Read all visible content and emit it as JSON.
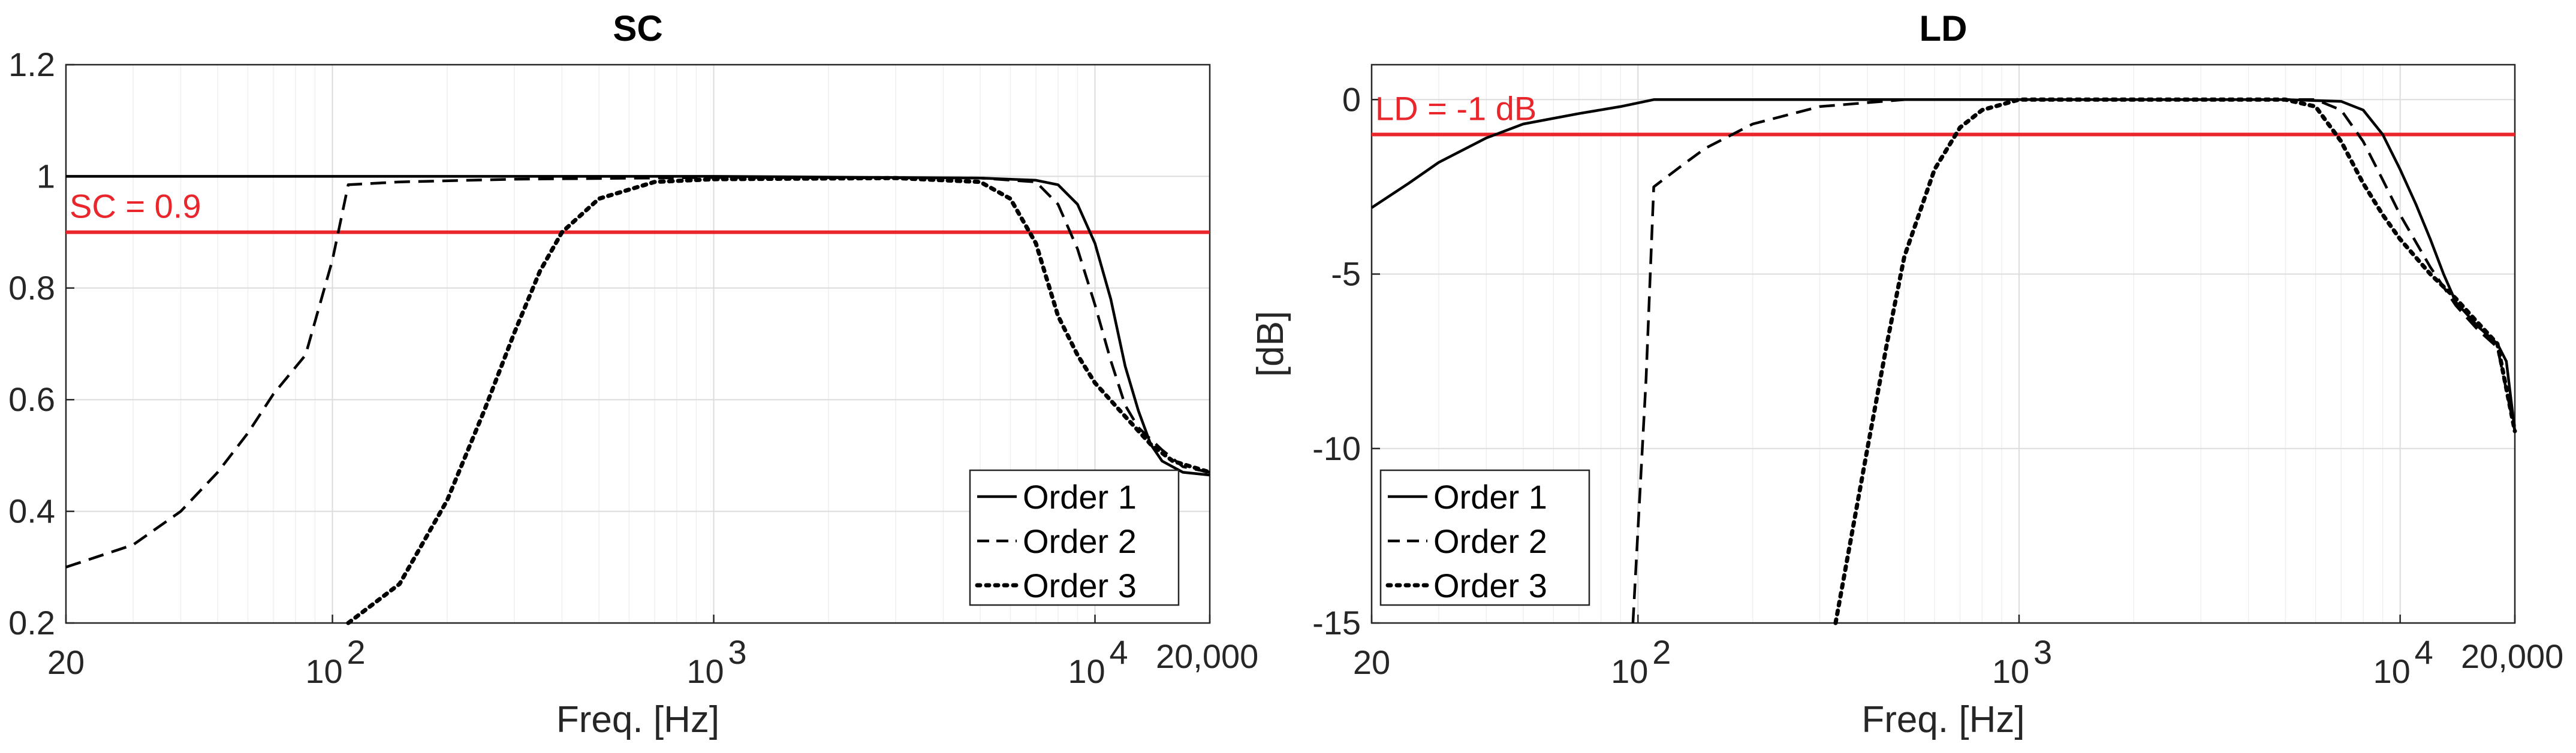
{
  "chart_data": [
    {
      "type": "line",
      "title": "SC",
      "xlabel": "Freq. [Hz]",
      "ylabel": "",
      "xscale": "log",
      "xlim": [
        20,
        20000
      ],
      "ylim": [
        0.2,
        1.2
      ],
      "xticks": [
        20,
        100,
        1000,
        10000,
        20000
      ],
      "xtick_labels": [
        "20",
        "10^2",
        "10^3",
        "10^4",
        "20,000"
      ],
      "yticks": [
        0.2,
        0.4,
        0.6,
        0.8,
        1,
        1.2
      ],
      "ytick_labels": [
        "0.2",
        "0.4",
        "0.6",
        "0.8",
        "1",
        "1.2"
      ],
      "grid": true,
      "legend_position": "bottom-right",
      "reference_line": {
        "y": 0.9,
        "label": "SC = 0.9",
        "color": "#e8262b"
      },
      "series": [
        {
          "name": "Order 1",
          "style": "solid",
          "points": [
            [
              20,
              1.0
            ],
            [
              100,
              1.0
            ],
            [
              1000,
              1.0
            ],
            [
              5000,
              0.997
            ],
            [
              7000,
              0.993
            ],
            [
              8000,
              0.985
            ],
            [
              9000,
              0.95
            ],
            [
              10000,
              0.88
            ],
            [
              11000,
              0.78
            ],
            [
              12000,
              0.66
            ],
            [
              13000,
              0.58
            ],
            [
              14000,
              0.52
            ],
            [
              15000,
              0.49
            ],
            [
              17000,
              0.47
            ],
            [
              20000,
              0.465
            ]
          ]
        },
        {
          "name": "Order 2",
          "style": "dashed",
          "points": [
            [
              20,
              0.3
            ],
            [
              30,
              0.34
            ],
            [
              40,
              0.4
            ],
            [
              50,
              0.47
            ],
            [
              60,
              0.54
            ],
            [
              70,
              0.61
            ],
            [
              85,
              0.68
            ],
            [
              100,
              0.85
            ],
            [
              110,
              0.985
            ],
            [
              150,
              0.99
            ],
            [
              300,
              0.995
            ],
            [
              1000,
              0.998
            ],
            [
              5000,
              0.997
            ],
            [
              7000,
              0.99
            ],
            [
              8000,
              0.95
            ],
            [
              9000,
              0.87
            ],
            [
              10000,
              0.77
            ],
            [
              11000,
              0.67
            ],
            [
              12000,
              0.59
            ],
            [
              13000,
              0.55
            ],
            [
              15000,
              0.51
            ],
            [
              17000,
              0.48
            ],
            [
              20000,
              0.47
            ]
          ]
        },
        {
          "name": "Order 3",
          "style": "dotted",
          "points": [
            [
              110,
              0.2
            ],
            [
              150,
              0.27
            ],
            [
              200,
              0.42
            ],
            [
              250,
              0.58
            ],
            [
              300,
              0.72
            ],
            [
              350,
              0.83
            ],
            [
              400,
              0.9
            ],
            [
              500,
              0.96
            ],
            [
              700,
              0.99
            ],
            [
              1000,
              0.995
            ],
            [
              3000,
              0.997
            ],
            [
              5000,
              0.99
            ],
            [
              6000,
              0.96
            ],
            [
              7000,
              0.88
            ],
            [
              8000,
              0.75
            ],
            [
              9000,
              0.68
            ],
            [
              10000,
              0.63
            ],
            [
              12000,
              0.57
            ],
            [
              14000,
              0.52
            ],
            [
              16000,
              0.49
            ],
            [
              20000,
              0.47
            ]
          ]
        }
      ]
    },
    {
      "type": "line",
      "title": "LD",
      "xlabel": "Freq. [Hz]",
      "ylabel": "[dB]",
      "xscale": "log",
      "xlim": [
        20,
        20000
      ],
      "ylim": [
        -15,
        1
      ],
      "xticks": [
        20,
        100,
        1000,
        10000,
        20000
      ],
      "xtick_labels": [
        "20",
        "10^2",
        "10^3",
        "10^4",
        "20,000"
      ],
      "yticks": [
        -15,
        -10,
        -5,
        0
      ],
      "ytick_labels": [
        "-15",
        "-10",
        "-5",
        "0"
      ],
      "grid": true,
      "legend_position": "bottom-left",
      "reference_line": {
        "y": -1,
        "label": "LD = -1 dB",
        "color": "#e8262b"
      },
      "series": [
        {
          "name": "Order 1",
          "style": "solid",
          "points": [
            [
              20,
              -3.1
            ],
            [
              25,
              -2.4
            ],
            [
              30,
              -1.8
            ],
            [
              40,
              -1.1
            ],
            [
              50,
              -0.7
            ],
            [
              70,
              -0.4
            ],
            [
              90,
              -0.2
            ],
            [
              110,
              0.0
            ],
            [
              1000,
              0.0
            ],
            [
              5000,
              0.0
            ],
            [
              7000,
              -0.05
            ],
            [
              8000,
              -0.3
            ],
            [
              9000,
              -1.0
            ],
            [
              10000,
              -2.0
            ],
            [
              11000,
              -3.0
            ],
            [
              12000,
              -4.0
            ],
            [
              13000,
              -5.0
            ],
            [
              14000,
              -5.8
            ],
            [
              16000,
              -6.5
            ],
            [
              18000,
              -7.0
            ],
            [
              19000,
              -7.5
            ],
            [
              20000,
              -9.5
            ]
          ]
        },
        {
          "name": "Order 2",
          "style": "dashed",
          "points": [
            [
              97,
              -15
            ],
            [
              105,
              -8
            ],
            [
              110,
              -2.5
            ],
            [
              130,
              -1.9
            ],
            [
              150,
              -1.4
            ],
            [
              200,
              -0.7
            ],
            [
              300,
              -0.2
            ],
            [
              500,
              0.0
            ],
            [
              3000,
              0.0
            ],
            [
              6000,
              0.0
            ],
            [
              7000,
              -0.3
            ],
            [
              8000,
              -1.2
            ],
            [
              9000,
              -2.3
            ],
            [
              10000,
              -3.3
            ],
            [
              12000,
              -4.8
            ],
            [
              14000,
              -5.9
            ],
            [
              16000,
              -6.6
            ],
            [
              18000,
              -7.1
            ],
            [
              20000,
              -9.5
            ]
          ]
        },
        {
          "name": "Order 3",
          "style": "dotted",
          "points": [
            [
              330,
              -15
            ],
            [
              400,
              -10
            ],
            [
              450,
              -7
            ],
            [
              500,
              -4.5
            ],
            [
              600,
              -2.0
            ],
            [
              700,
              -0.8
            ],
            [
              800,
              -0.3
            ],
            [
              1000,
              0.0
            ],
            [
              5000,
              0.0
            ],
            [
              6000,
              -0.2
            ],
            [
              7000,
              -1.2
            ],
            [
              8000,
              -2.4
            ],
            [
              9000,
              -3.3
            ],
            [
              10000,
              -4.0
            ],
            [
              12000,
              -5.0
            ],
            [
              14000,
              -5.7
            ],
            [
              16000,
              -6.4
            ],
            [
              18000,
              -7.0
            ],
            [
              20000,
              -9.5
            ]
          ]
        }
      ]
    }
  ]
}
